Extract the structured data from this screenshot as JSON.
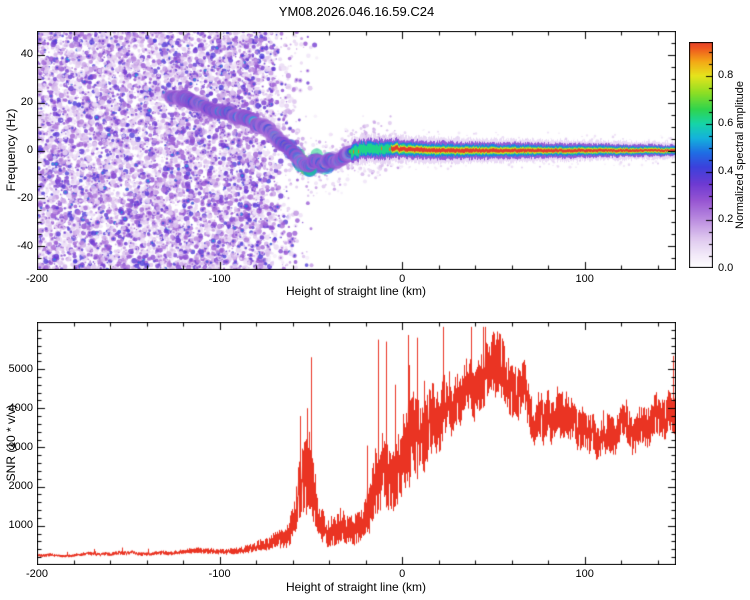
{
  "title": "YM08.2026.046.16.59.C24",
  "figure": {
    "background": "#ffffff",
    "axis_color": "#000000"
  },
  "chart_data": [
    {
      "type": "heatmap",
      "name": "normalized-spectral-amplitude-spectrogram",
      "xlabel": "Height of straight line (km)",
      "ylabel": "Frequency (Hz)",
      "xlim": [
        -200,
        150
      ],
      "ylim": [
        -50,
        50
      ],
      "x_ticks": [
        -200,
        -100,
        0,
        100
      ],
      "x_tick_labels": [
        "-200",
        "-100",
        "0",
        "100"
      ],
      "x_minor_step": 20,
      "y_ticks": [
        -40,
        -20,
        0,
        20,
        40
      ],
      "y_tick_labels": [
        "-40",
        "-20",
        "0",
        "20",
        "40"
      ],
      "y_minor_step": 5,
      "colorbar": {
        "label": "Normalized spectral amplitude",
        "range": [
          0,
          0.94
        ],
        "ticks": [
          0,
          0.2,
          0.4,
          0.6,
          0.8
        ],
        "tick_labels": [
          "0.0",
          "0.2",
          "0.4",
          "0.6",
          "0.8"
        ],
        "minor_step": 0.05
      },
      "colormap": [
        [
          0.0,
          "#ffffff"
        ],
        [
          0.05,
          "#f3eaf9"
        ],
        [
          0.12,
          "#dfc8ef"
        ],
        [
          0.2,
          "#bb8ce0"
        ],
        [
          0.28,
          "#9655d2"
        ],
        [
          0.35,
          "#6d3ad2"
        ],
        [
          0.42,
          "#3b41dc"
        ],
        [
          0.48,
          "#1f6ee4"
        ],
        [
          0.54,
          "#14b2dc"
        ],
        [
          0.6,
          "#16d4a8"
        ],
        [
          0.66,
          "#2fd44e"
        ],
        [
          0.73,
          "#8ede24"
        ],
        [
          0.8,
          "#e6e41c"
        ],
        [
          0.86,
          "#f4a816"
        ],
        [
          0.92,
          "#ee5220"
        ],
        [
          1.0,
          "#d01048"
        ]
      ],
      "ridge_points": [
        [
          -128,
          23
        ],
        [
          -118,
          21
        ],
        [
          -108,
          19
        ],
        [
          -98,
          16.5
        ],
        [
          -90,
          14
        ],
        [
          -82,
          11.5
        ],
        [
          -75,
          9
        ],
        [
          -69,
          6
        ],
        [
          -64,
          2.5
        ],
        [
          -59,
          -1.5
        ],
        [
          -55,
          -4.5
        ],
        [
          -51,
          -6.5
        ],
        [
          -47,
          -4.5
        ],
        [
          -43,
          -6
        ],
        [
          -39,
          -4
        ],
        [
          -35,
          -4.5
        ],
        [
          -31,
          -2
        ],
        [
          -27,
          -0.5
        ],
        [
          -22,
          0.5
        ],
        [
          -16,
          0.5
        ],
        [
          -10,
          0.5
        ],
        [
          -4,
          1
        ],
        [
          2,
          0.5
        ],
        [
          20,
          0
        ],
        [
          150,
          0
        ]
      ],
      "band_start_x": -28,
      "red_core_start_x": -6,
      "render": {
        "seed": 42,
        "noise_x_fade": -78,
        "noise_x_end": -44,
        "haze_count": 3200,
        "speckle_count": 6200,
        "mid_count": 380,
        "knee_count": 70
      }
    },
    {
      "type": "line",
      "name": "snr-profile",
      "xlabel": "Height of straight line (km)",
      "ylabel": "SNR (10 * v/v)",
      "xlim": [
        -200,
        150
      ],
      "ylim": [
        0,
        6200
      ],
      "x_ticks": [
        -200,
        -100,
        0,
        100
      ],
      "x_tick_labels": [
        "-200",
        "-100",
        "0",
        "100"
      ],
      "x_minor_step": 20,
      "y_ticks": [
        1000,
        2000,
        3000,
        4000,
        5000
      ],
      "y_tick_labels": [
        "1000",
        "2000",
        "3000",
        "4000",
        "5000"
      ],
      "y_minor_step": 200,
      "line_color": "#ea3423",
      "envelope": [
        [
          -200,
          260
        ],
        [
          -170,
          270
        ],
        [
          -150,
          285
        ],
        [
          -130,
          310
        ],
        [
          -110,
          350
        ],
        [
          -95,
          410
        ],
        [
          -85,
          480
        ],
        [
          -75,
          590
        ],
        [
          -68,
          720
        ],
        [
          -62,
          900
        ],
        [
          -58,
          1500
        ],
        [
          -55,
          2300
        ],
        [
          -51,
          2700
        ],
        [
          -48,
          2000
        ],
        [
          -45,
          1250
        ],
        [
          -42,
          950
        ],
        [
          -38,
          1000
        ],
        [
          -34,
          1150
        ],
        [
          -30,
          1050
        ],
        [
          -26,
          1100
        ],
        [
          -22,
          1250
        ],
        [
          -18,
          1600
        ],
        [
          -14,
          2300
        ],
        [
          -10,
          2500
        ],
        [
          -6,
          2300
        ],
        [
          -2,
          2700
        ],
        [
          2,
          3100
        ],
        [
          6,
          3500
        ],
        [
          10,
          3800
        ],
        [
          15,
          4150
        ],
        [
          20,
          4400
        ],
        [
          25,
          4550
        ],
        [
          30,
          4650
        ],
        [
          35,
          4600
        ],
        [
          45,
          4500
        ],
        [
          55,
          4400
        ],
        [
          65,
          4300
        ],
        [
          75,
          4200
        ],
        [
          85,
          4050
        ],
        [
          95,
          3950
        ],
        [
          105,
          3850
        ],
        [
          115,
          3700
        ],
        [
          125,
          3550
        ],
        [
          135,
          3450
        ],
        [
          150,
          3300
        ]
      ],
      "spikes": [
        [
          -56,
          3800
        ],
        [
          -52,
          4000
        ],
        [
          -50,
          5300
        ],
        [
          -13,
          5750
        ],
        [
          -9,
          5700
        ],
        [
          -4,
          4600
        ],
        [
          4,
          5100
        ],
        [
          8,
          5800
        ],
        [
          12,
          4700
        ]
      ],
      "noise_frac": [
        [
          -200,
          0.15
        ],
        [
          -120,
          0.18
        ],
        [
          -80,
          0.26
        ],
        [
          -60,
          0.42
        ],
        [
          -40,
          0.45
        ],
        [
          -20,
          0.45
        ],
        [
          0,
          0.35
        ],
        [
          30,
          0.15
        ],
        [
          60,
          0.16
        ],
        [
          100,
          0.15
        ],
        [
          150,
          0.14
        ]
      ],
      "render": {
        "seed": 7
      }
    }
  ]
}
